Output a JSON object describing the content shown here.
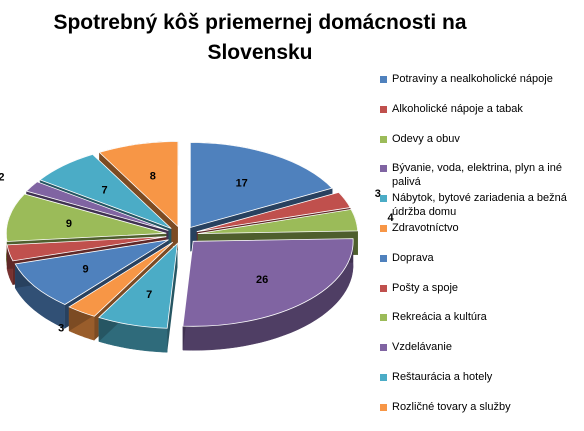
{
  "chart_data": {
    "type": "pie",
    "title": "Spotrebný kôš priemernej domácnosti na\nSlovensku",
    "legend_position": "right",
    "exploded": true,
    "three_d": true,
    "categories": [
      "Potraviny a nealkoholické nápoje",
      "Alkoholické nápoje a tabak",
      "Odevy a obuv",
      "Bývanie, voda, elektrina, plyn a iné palivá",
      "Nábytok, bytové zariadenia a bežná údržba domu",
      "Zdravotníctvo",
      "Doprava",
      "Pošty a spoje",
      "Rekreácia a kultúra",
      "Vzdelávanie",
      "Reštaurácia a hotely",
      "Rozličné tovary a služby"
    ],
    "values": [
      17,
      3,
      4,
      26,
      7,
      3,
      9,
      3,
      9,
      2,
      7,
      8
    ],
    "colors": [
      "#4F81BD",
      "#C0504D",
      "#9BBB59",
      "#8064A2",
      "#4BACC6",
      "#F79646",
      "#4F81BD",
      "#C0504D",
      "#9BBB59",
      "#8064A2",
      "#4BACC6",
      "#F79646"
    ]
  }
}
